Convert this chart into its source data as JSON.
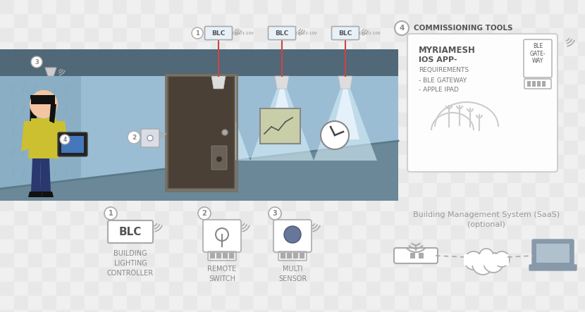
{
  "checker1": "#e8e8e8",
  "checker2": "#f0f0f0",
  "wall_color": "#8fb5cc",
  "wall_light": "#9ec5d8",
  "ceiling_color": "#5a7a94",
  "floor_color": "#7a9aae",
  "door_color": "#4a4035",
  "text_gray": "#888888",
  "text_dark": "#555555",
  "icon_gray": "#aaaaaa",
  "title_text": "COMMISSIONING TOOLS",
  "device1_label": "BUILDING\nLIGHTING\nCONTROLLER",
  "device2_label": "REMOTE\nSWITCH",
  "device3_label": "MULTI\nSENSOR",
  "bms_label": "Building Management System (SaaS)\n(optional)",
  "ble_label": "BLE\nGATE-\nWAY"
}
